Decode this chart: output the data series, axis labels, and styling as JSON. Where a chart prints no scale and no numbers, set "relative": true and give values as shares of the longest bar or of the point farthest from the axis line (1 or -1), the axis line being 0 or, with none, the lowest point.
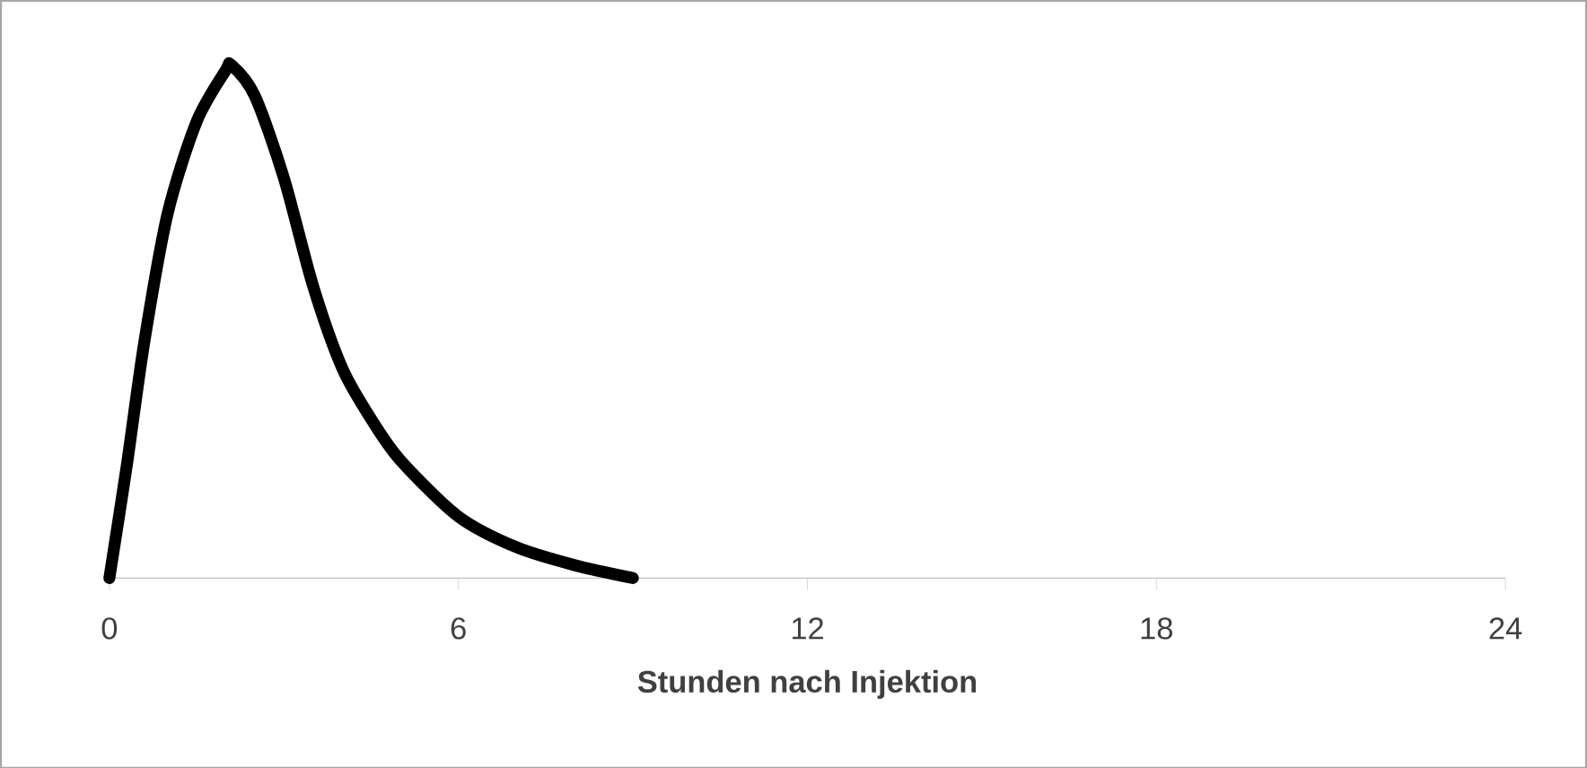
{
  "chart_data": {
    "type": "line",
    "relative": true,
    "xlabel": "Stunden nach Injektion",
    "xlim": [
      0,
      24
    ],
    "xticks": [
      0,
      6,
      12,
      18,
      24
    ],
    "series": [
      {
        "color": "#000000",
        "x": [
          0,
          0.3,
          0.6,
          1.0,
          1.5,
          2.0,
          2.1,
          2.5,
          3.0,
          3.5,
          4.0,
          4.5,
          5.0,
          6.0,
          7.0,
          8.0,
          9.0
        ],
        "values": [
          0,
          0.22,
          0.46,
          0.71,
          0.89,
          0.99,
          1.0,
          0.94,
          0.78,
          0.57,
          0.41,
          0.31,
          0.23,
          0.12,
          0.06,
          0.025,
          0
        ]
      }
    ],
    "marker": "none",
    "line_style": "solid"
  }
}
